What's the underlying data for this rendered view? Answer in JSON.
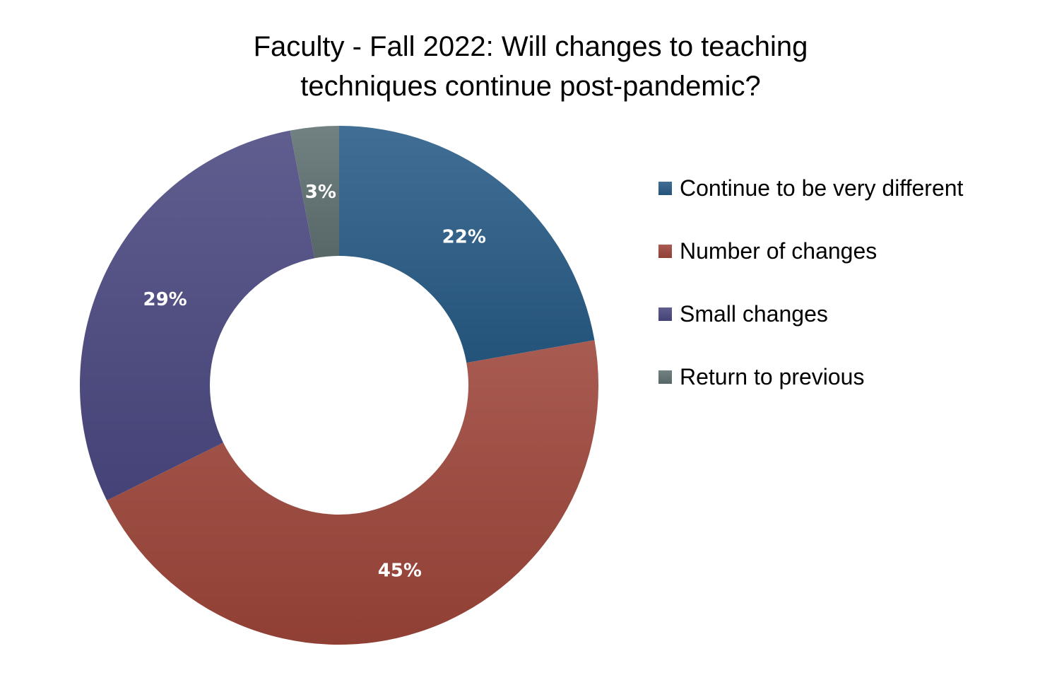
{
  "chart_data": {
    "type": "pie",
    "variant": "donut",
    "title": "Faculty - Fall 2022:  Will changes to teaching techniques continue post-pandemic?",
    "title_lines": [
      "Faculty - Fall 2022:  Will changes to teaching",
      "techniques continue post-pandemic?"
    ],
    "start": "top, clockwise",
    "legend_position": "right",
    "categories": [
      "Continue to be very different",
      "Number of changes",
      "Small changes",
      "Return to previous"
    ],
    "values": [
      22,
      45,
      29,
      3
    ],
    "labels": [
      "22%",
      "45%",
      "29%",
      "3%"
    ],
    "colors": [
      "#275a85",
      "#9c4539",
      "#4a4880",
      "#5f7070"
    ]
  }
}
